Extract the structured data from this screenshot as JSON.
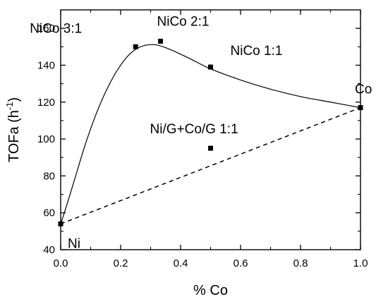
{
  "chart_data": {
    "type": "scatter",
    "xlabel": "%  Co",
    "ylabel_main": "TOFa (h",
    "ylabel_sup": "-1",
    "ylabel_end": ")",
    "xlim": [
      0.0,
      1.0
    ],
    "ylim": [
      40,
      170
    ],
    "x_ticks": [
      "0.0",
      "0.2",
      "0.4",
      "0.6",
      "0.8",
      "1.0"
    ],
    "y_ticks": [
      "40",
      "60",
      "80",
      "100",
      "120",
      "140",
      "160"
    ],
    "grid": false,
    "series": [
      {
        "marker": "square",
        "points": [
          {
            "x": 0.0,
            "y": 54,
            "label": "Ni"
          },
          {
            "x": 0.25,
            "y": 150,
            "label": "NiCo 3:1"
          },
          {
            "x": 0.333,
            "y": 153,
            "label": "NiCo 2:1"
          },
          {
            "x": 0.5,
            "y": 139,
            "label": "NiCo 1:1"
          },
          {
            "x": 1.0,
            "y": 117,
            "label": "Co"
          },
          {
            "x": 0.5,
            "y": 95,
            "label": "Ni/G+Co/G 1:1"
          }
        ]
      }
    ],
    "fit_curve": {
      "style": "solid",
      "points": [
        [
          0.0,
          54
        ],
        [
          0.02,
          64
        ],
        [
          0.05,
          80
        ],
        [
          0.08,
          96
        ],
        [
          0.11,
          110
        ],
        [
          0.14,
          122
        ],
        [
          0.17,
          132
        ],
        [
          0.2,
          140
        ],
        [
          0.23,
          146
        ],
        [
          0.26,
          149.5
        ],
        [
          0.29,
          151
        ],
        [
          0.32,
          151
        ],
        [
          0.35,
          149.5
        ],
        [
          0.4,
          146
        ],
        [
          0.45,
          142
        ],
        [
          0.5,
          138
        ],
        [
          0.6,
          132
        ],
        [
          0.7,
          127
        ],
        [
          0.8,
          123
        ],
        [
          0.9,
          120
        ],
        [
          1.0,
          117
        ]
      ]
    },
    "reference_line": {
      "style": "dashed",
      "points": [
        [
          0.0,
          54
        ],
        [
          1.0,
          117
        ]
      ]
    }
  }
}
